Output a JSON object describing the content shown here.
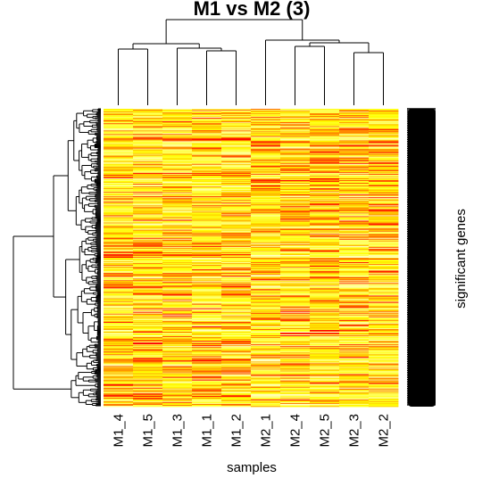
{
  "chart_data": {
    "type": "heatmap",
    "title": "M1 vs M2 (3)",
    "xlabel": "samples",
    "ylabel": "significant genes",
    "columns": [
      "M1_4",
      "M1_5",
      "M1_3",
      "M1_1",
      "M1_2",
      "M2_1",
      "M2_4",
      "M2_5",
      "M2_3",
      "M2_2"
    ],
    "row_count": 330,
    "color_scale": [
      "#ff0000",
      "#ff7f00",
      "#ffff00",
      "#ffffcc"
    ],
    "column_dendrogram": "complete",
    "row_dendrogram": "complete",
    "row_labels": "dense"
  }
}
